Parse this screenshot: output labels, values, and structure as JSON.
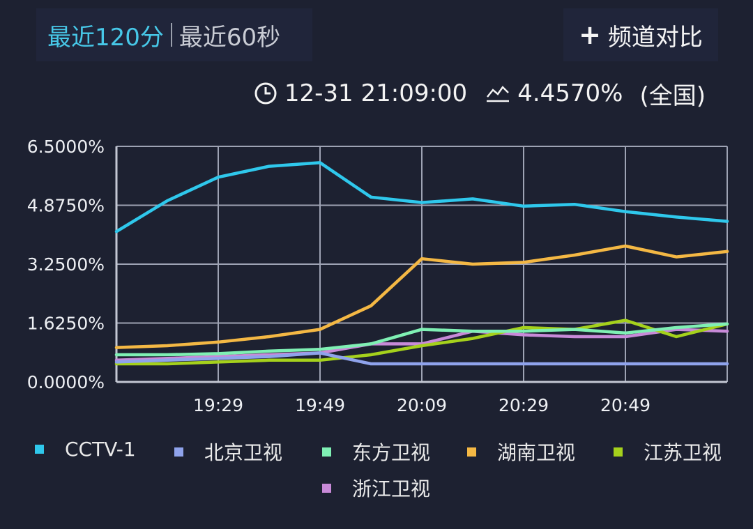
{
  "tabs": {
    "active": "最近120分",
    "inactive": "最近60秒"
  },
  "compare_button": {
    "label": "频道对比"
  },
  "info": {
    "time": "12-31 21:09:00",
    "rating": "4.4570%",
    "region": "(全国)"
  },
  "icons": {
    "time": "clock-icon",
    "rating": "trend-icon",
    "compare": "plus-icon"
  },
  "chart_data": {
    "type": "line",
    "title": "",
    "xlabel": "",
    "ylabel": "",
    "x": [
      "19:09",
      "19:19",
      "19:29",
      "19:39",
      "19:49",
      "19:59",
      "20:09",
      "20:19",
      "20:29",
      "20:39",
      "20:49",
      "20:59",
      "21:09"
    ],
    "x_tick_labels": [
      "19:29",
      "19:49",
      "20:09",
      "20:29",
      "20:49"
    ],
    "y_tick_labels": [
      "0.0000%",
      "1.6250%",
      "3.2500%",
      "4.8750%",
      "6.5000%"
    ],
    "ylim": [
      0,
      6.5
    ],
    "grid": true,
    "legend_position": "bottom",
    "series": [
      {
        "name": "CCTV-1",
        "color": "#2fc8ec",
        "values": [
          4.15,
          5.0,
          5.65,
          5.95,
          6.05,
          5.1,
          4.95,
          5.05,
          4.85,
          4.9,
          4.7,
          4.55,
          4.43
        ]
      },
      {
        "name": "北京卫视",
        "color": "#8fa3ec",
        "values": [
          0.55,
          0.6,
          0.65,
          0.7,
          0.8,
          0.5,
          0.5,
          0.5,
          0.5,
          0.5,
          0.5,
          0.5,
          0.5
        ]
      },
      {
        "name": "东方卫视",
        "color": "#7ff0b4",
        "values": [
          0.75,
          0.75,
          0.78,
          0.85,
          0.9,
          1.05,
          1.45,
          1.4,
          1.4,
          1.45,
          1.35,
          1.5,
          1.6
        ]
      },
      {
        "name": "湖南卫视",
        "color": "#f4b844",
        "values": [
          0.95,
          1.0,
          1.1,
          1.25,
          1.45,
          2.1,
          3.4,
          3.25,
          3.3,
          3.5,
          3.75,
          3.45,
          3.6
        ]
      },
      {
        "name": "江苏卫视",
        "color": "#a5d11c",
        "values": [
          0.5,
          0.5,
          0.55,
          0.6,
          0.6,
          0.75,
          1.0,
          1.2,
          1.5,
          1.45,
          1.7,
          1.25,
          1.6
        ]
      },
      {
        "name": "浙江卫视",
        "color": "#c88ad8",
        "values": [
          0.6,
          0.65,
          0.7,
          0.75,
          0.8,
          1.05,
          1.05,
          1.4,
          1.3,
          1.25,
          1.25,
          1.45,
          1.4
        ]
      }
    ]
  }
}
